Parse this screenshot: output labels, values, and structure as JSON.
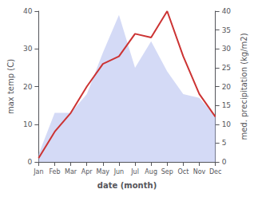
{
  "chart_data": {
    "type": "line",
    "categories": [
      "Jan",
      "Feb",
      "Mar",
      "Apr",
      "May",
      "Jun",
      "Jul",
      "Aug",
      "Sep",
      "Oct",
      "Nov",
      "Dec"
    ],
    "series": [
      {
        "type": "area",
        "axis": "y2",
        "color": "#b0bbee",
        "values": [
          2.0,
          13.0,
          13.0,
          18.0,
          29.0,
          39.0,
          25.0,
          32.0,
          24.0,
          18.0,
          17.0,
          12.0
        ]
      },
      {
        "type": "line",
        "color": "#cc3333",
        "values": [
          1.0,
          8.0,
          13.0,
          20.0,
          26.0,
          28.0,
          34.0,
          33.0,
          40.0,
          28.0,
          18.0,
          12.0
        ]
      }
    ],
    "xlabel": "date (month)",
    "ylabel": "max temp (C)",
    "y2label": "med. precipitation (kg/m2)",
    "ylim": [
      0,
      40
    ],
    "yticks": [
      0,
      10,
      20,
      30,
      40
    ],
    "y2lim": [
      0,
      40
    ],
    "y2ticks": [
      0,
      5,
      10,
      15,
      20,
      25,
      30,
      35,
      40
    ],
    "grid": false
  }
}
